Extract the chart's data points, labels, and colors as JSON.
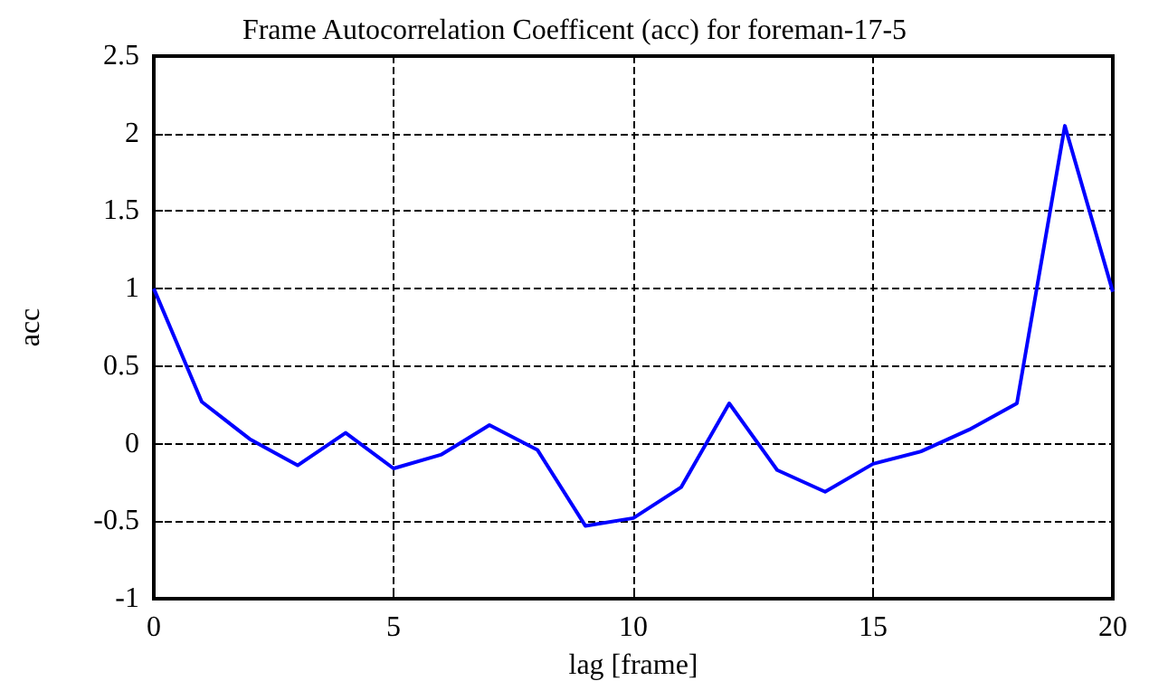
{
  "chart_data": {
    "type": "line",
    "title": "Frame Autocorrelation Coefficent (acc) for foreman-17-5",
    "xlabel": "lag [frame]",
    "ylabel": "acc",
    "x": [
      0,
      1,
      2,
      3,
      4,
      5,
      6,
      7,
      8,
      9,
      10,
      11,
      12,
      13,
      14,
      15,
      16,
      17,
      18,
      19,
      20
    ],
    "series": [
      {
        "color": "#0000ff",
        "values": [
          1,
          0.27,
          0.03,
          -0.14,
          0.07,
          -0.16,
          -0.07,
          0.12,
          -0.04,
          -0.53,
          -0.48,
          -0.28,
          0.26,
          -0.17,
          -0.31,
          -0.13,
          -0.05,
          0.09,
          0.26,
          2.05,
          0.98
        ]
      }
    ],
    "xlim": [
      0,
      20
    ],
    "xticks": [
      0,
      5,
      10,
      15,
      20
    ],
    "ylim": [
      -1,
      2.5
    ],
    "yticks": [
      -1,
      -0.5,
      0,
      0.5,
      1,
      1.5,
      2,
      2.5
    ],
    "grid": true,
    "marker": "none",
    "line_style": "solid"
  }
}
